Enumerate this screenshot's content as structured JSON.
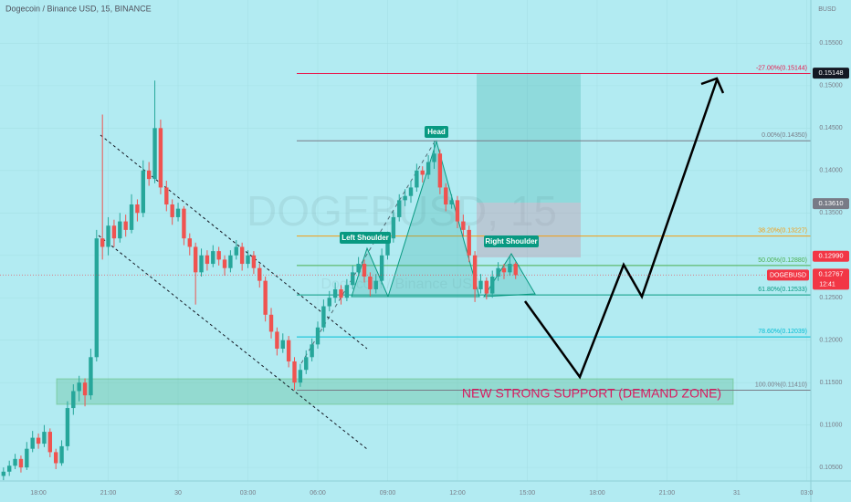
{
  "chart_data": {
    "type": "candlestick",
    "title": "Dogecoin / Binance USD, 15, BINANCE",
    "watermark": "DOGEBUSD, 15",
    "watermark_subtitle": "Dogecoin / Binance USD",
    "currency": "BUSD",
    "colors": {
      "up": "#26a69a",
      "down": "#ef5350"
    },
    "xlim": [
      -1.65,
      33.18
    ],
    "ylim": [
      0.1034,
      0.1601
    ],
    "xticks": [
      {
        "value": 0,
        "label": "18:00"
      },
      {
        "value": 3,
        "label": "21:00"
      },
      {
        "value": 6,
        "label": "30"
      },
      {
        "value": 9,
        "label": "03:00"
      },
      {
        "value": 12,
        "label": "06:00"
      },
      {
        "value": 15,
        "label": "09:00"
      },
      {
        "value": 18,
        "label": "12:00"
      },
      {
        "value": 21,
        "label": "15:00"
      },
      {
        "value": 24,
        "label": "18:00"
      },
      {
        "value": 27,
        "label": "21:00"
      },
      {
        "value": 30,
        "label": "31"
      },
      {
        "value": 33,
        "label": "03:0"
      }
    ],
    "yticks": [
      {
        "value": 0.105,
        "label": "0.10500"
      },
      {
        "value": 0.11,
        "label": "0.11000"
      },
      {
        "value": 0.115,
        "label": "0.11500"
      },
      {
        "value": 0.12,
        "label": "0.12000"
      },
      {
        "value": 0.125,
        "label": "0.12500"
      },
      {
        "value": 0.13,
        "label": "0.13000"
      },
      {
        "value": 0.135,
        "label": "0.13500"
      },
      {
        "value": 0.14,
        "label": "0.14000"
      },
      {
        "value": 0.145,
        "label": "0.14500"
      },
      {
        "value": 0.15,
        "label": "0.15000"
      },
      {
        "value": 0.155,
        "label": "0.15500"
      }
    ],
    "candles": {
      "x": [
        -1.5,
        -1.25,
        -1,
        -0.75,
        -0.5,
        -0.25,
        0,
        0.25,
        0.5,
        0.75,
        1,
        1.25,
        1.5,
        1.75,
        2,
        2.25,
        2.5,
        2.75,
        3,
        3.25,
        3.5,
        3.75,
        4,
        4.25,
        4.5,
        4.75,
        5,
        5.25,
        5.5,
        5.75,
        6,
        6.25,
        6.5,
        6.75,
        7,
        7.25,
        7.5,
        7.75,
        8,
        8.25,
        8.5,
        8.75,
        9,
        9.25,
        9.5,
        9.75,
        10,
        10.25,
        10.5,
        10.75,
        11,
        11.25,
        11.5,
        11.75,
        12,
        12.25,
        12.5,
        12.75,
        13,
        13.25,
        13.5,
        13.75,
        14,
        14.25,
        14.5,
        14.75,
        15,
        15.25,
        15.5,
        15.75,
        16,
        16.25,
        16.5,
        16.75,
        17,
        17.25,
        17.5,
        17.75,
        18,
        18.25,
        18.5,
        18.75,
        19,
        19.25,
        19.5,
        19.75,
        20,
        20.25,
        20.5
      ],
      "ohlc": [
        [
          0.104,
          0.105,
          0.1035,
          0.1045
        ],
        [
          0.1045,
          0.1058,
          0.104,
          0.1052
        ],
        [
          0.1052,
          0.1066,
          0.1048,
          0.106
        ],
        [
          0.106,
          0.1064,
          0.1044,
          0.105
        ],
        [
          0.105,
          0.108,
          0.1047,
          0.1072
        ],
        [
          0.1072,
          0.1093,
          0.1068,
          0.1085
        ],
        [
          0.1085,
          0.109,
          0.1072,
          0.1078
        ],
        [
          0.1078,
          0.11,
          0.1074,
          0.1092
        ],
        [
          0.1092,
          0.1096,
          0.1062,
          0.1068
        ],
        [
          0.1068,
          0.1072,
          0.1048,
          0.1055
        ],
        [
          0.1055,
          0.1082,
          0.1052,
          0.1075
        ],
        [
          0.1075,
          0.1128,
          0.107,
          0.112
        ],
        [
          0.112,
          0.1148,
          0.1112,
          0.114
        ],
        [
          0.114,
          0.1158,
          0.1128,
          0.115
        ],
        [
          0.115,
          0.1155,
          0.1122,
          0.1135
        ],
        [
          0.1135,
          0.119,
          0.113,
          0.118
        ],
        [
          0.118,
          0.133,
          0.1175,
          0.132
        ],
        [
          0.132,
          0.1466,
          0.1295,
          0.131
        ],
        [
          0.131,
          0.1345,
          0.13,
          0.1335
        ],
        [
          0.1335,
          0.1342,
          0.131,
          0.132
        ],
        [
          0.132,
          0.135,
          0.1315,
          0.134
        ],
        [
          0.134,
          0.1348,
          0.1322,
          0.133
        ],
        [
          0.133,
          0.1372,
          0.1326,
          0.136
        ],
        [
          0.136,
          0.1366,
          0.134,
          0.135
        ],
        [
          0.135,
          0.1412,
          0.1345,
          0.14
        ],
        [
          0.14,
          0.141,
          0.1382,
          0.139
        ],
        [
          0.139,
          0.1506,
          0.1385,
          0.145
        ],
        [
          0.145,
          0.146,
          0.1372,
          0.138
        ],
        [
          0.138,
          0.1388,
          0.1352,
          0.136
        ],
        [
          0.136,
          0.1366,
          0.1336,
          0.1345
        ],
        [
          0.1345,
          0.1362,
          0.134,
          0.1355
        ],
        [
          0.1355,
          0.1358,
          0.1312,
          0.132
        ],
        [
          0.132,
          0.1326,
          0.13,
          0.131
        ],
        [
          0.131,
          0.1315,
          0.1242,
          0.128
        ],
        [
          0.128,
          0.1308,
          0.1275,
          0.13
        ],
        [
          0.13,
          0.1306,
          0.1282,
          0.129
        ],
        [
          0.129,
          0.1312,
          0.1286,
          0.1305
        ],
        [
          0.1305,
          0.131,
          0.1288,
          0.1295
        ],
        [
          0.1295,
          0.13,
          0.1276,
          0.1285
        ],
        [
          0.1285,
          0.1306,
          0.128,
          0.13
        ],
        [
          0.13,
          0.1318,
          0.1295,
          0.131
        ],
        [
          0.131,
          0.1315,
          0.1282,
          0.129
        ],
        [
          0.129,
          0.1306,
          0.1285,
          0.13
        ],
        [
          0.13,
          0.1305,
          0.1278,
          0.1285
        ],
        [
          0.1285,
          0.129,
          0.1262,
          0.127
        ],
        [
          0.127,
          0.1275,
          0.1222,
          0.123
        ],
        [
          0.123,
          0.1238,
          0.1202,
          0.121
        ],
        [
          0.121,
          0.1215,
          0.1182,
          0.119
        ],
        [
          0.119,
          0.1208,
          0.1185,
          0.12
        ],
        [
          0.12,
          0.1205,
          0.1168,
          0.1175
        ],
        [
          0.1175,
          0.118,
          0.1141,
          0.115
        ],
        [
          0.115,
          0.1172,
          0.1145,
          0.1165
        ],
        [
          0.1165,
          0.1188,
          0.116,
          0.118
        ],
        [
          0.118,
          0.1202,
          0.1175,
          0.1195
        ],
        [
          0.1195,
          0.1222,
          0.119,
          0.1215
        ],
        [
          0.1215,
          0.1248,
          0.121,
          0.124
        ],
        [
          0.124,
          0.1258,
          0.1234,
          0.125
        ],
        [
          0.125,
          0.1268,
          0.1244,
          0.126
        ],
        [
          0.126,
          0.1265,
          0.1242,
          0.125
        ],
        [
          0.125,
          0.1272,
          0.1246,
          0.1265
        ],
        [
          0.1265,
          0.1288,
          0.126,
          0.128
        ],
        [
          0.128,
          0.1298,
          0.1275,
          0.129
        ],
        [
          0.129,
          0.1295,
          0.1268,
          0.1275
        ],
        [
          0.1275,
          0.128,
          0.1252,
          0.126
        ],
        [
          0.126,
          0.1278,
          0.1255,
          0.127
        ],
        [
          0.127,
          0.1308,
          0.1266,
          0.13
        ],
        [
          0.13,
          0.1328,
          0.1295,
          0.132
        ],
        [
          0.132,
          0.1352,
          0.1315,
          0.1345
        ],
        [
          0.1345,
          0.1372,
          0.134,
          0.1365
        ],
        [
          0.1365,
          0.1378,
          0.1358,
          0.137
        ],
        [
          0.137,
          0.1388,
          0.1362,
          0.138
        ],
        [
          0.138,
          0.1408,
          0.1375,
          0.14
        ],
        [
          0.14,
          0.1405,
          0.1386,
          0.1395
        ],
        [
          0.1395,
          0.1418,
          0.139,
          0.141
        ],
        [
          0.141,
          0.1435,
          0.1402,
          0.142
        ],
        [
          0.142,
          0.1425,
          0.1372,
          0.138
        ],
        [
          0.138,
          0.1385,
          0.1352,
          0.136
        ],
        [
          0.136,
          0.1372,
          0.1355,
          0.1365
        ],
        [
          0.1365,
          0.137,
          0.1332,
          0.134
        ],
        [
          0.134,
          0.1348,
          0.1322,
          0.133
        ],
        [
          0.133,
          0.1335,
          0.1292,
          0.13
        ],
        [
          0.13,
          0.1305,
          0.1245,
          0.126
        ],
        [
          0.126,
          0.1278,
          0.1255,
          0.127
        ],
        [
          0.127,
          0.1274,
          0.1248,
          0.1255
        ],
        [
          0.1255,
          0.1282,
          0.125,
          0.1275
        ],
        [
          0.1275,
          0.1292,
          0.127,
          0.1285
        ],
        [
          0.1285,
          0.129,
          0.1272,
          0.128
        ],
        [
          0.128,
          0.1298,
          0.1276,
          0.129
        ],
        [
          0.129,
          0.1292,
          0.1272,
          0.12767
        ]
      ]
    },
    "fib_levels": [
      {
        "label": "-27.00%(0.15144)",
        "value": 0.15144,
        "color": "#e8194c"
      },
      {
        "label": "0.00%(0.14350)",
        "value": 0.1435,
        "color": "#787b86"
      },
      {
        "label": "38.20%(0.13227)",
        "value": 0.13227,
        "color": "#f39c12"
      },
      {
        "label": "50.00%(0.12880)",
        "value": 0.1288,
        "color": "#4caf50"
      },
      {
        "label": "61.80%(0.12533)",
        "value": 0.12533,
        "color": "#089981"
      },
      {
        "label": "78.60%(0.12039)",
        "value": 0.12039,
        "color": "#00bcd4"
      },
      {
        "label": "100.00%(0.11410)",
        "value": 0.1141,
        "color": "#787b86"
      }
    ],
    "price_badges": [
      {
        "value": 0.15148,
        "label": "0.15148",
        "color": "#131722"
      },
      {
        "value": 0.1361,
        "label": "0.13610",
        "color": "#787b86"
      },
      {
        "value": 0.1299,
        "label": "0.12990",
        "color": "#f23645"
      }
    ],
    "last_price": {
      "symbol": "DOGEBUSD",
      "value": 0.12767,
      "label": "0.12767",
      "countdown": "12:41",
      "color": "#f23645"
    },
    "annotations": [
      "Head",
      "Left Shoulder",
      "Right Shoulder",
      "NEW STRONG SUPPORT (DEMAND ZONE)"
    ]
  }
}
